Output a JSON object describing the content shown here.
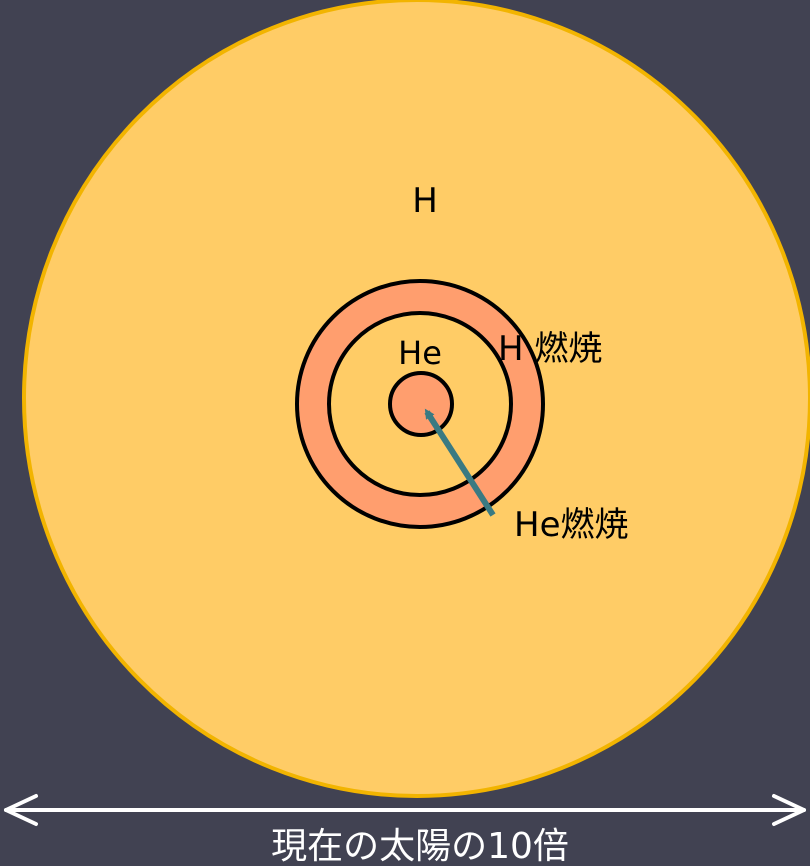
{
  "colors": {
    "background": "#414252",
    "envelope_fill": "#FFCC66",
    "envelope_stroke": "#F2B400",
    "shell_fill": "#FF9E6E",
    "inner_fill": "#FFCC66",
    "core_fill": "#FF9E6E",
    "outline": "#000000",
    "arrow": "#3A7A82",
    "text_dark": "#000000",
    "text_light": "#FFFFFF"
  },
  "labels": {
    "hydrogen_envelope": "H",
    "hydrogen_burning_shell": "H 燃焼",
    "helium_layer": "He",
    "helium_burning_core": "He燃焼",
    "scale_note": "現在の太陽の10倍"
  }
}
